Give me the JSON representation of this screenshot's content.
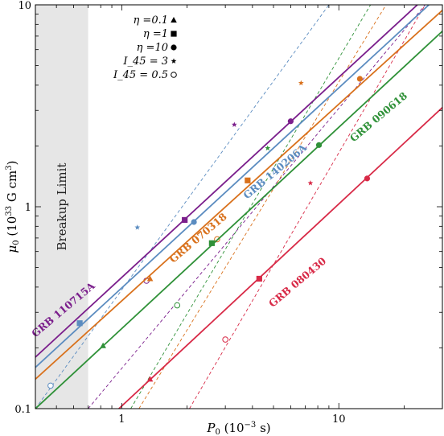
{
  "chart_data": {
    "type": "line",
    "title": "",
    "xlabel": "P_0 (10^{-3} s)",
    "ylabel": "μ_0 (10^{33} G cm^3)",
    "xscale": "log",
    "yscale": "log",
    "xlim": [
      0.4,
      30
    ],
    "ylim": [
      0.1,
      10
    ],
    "x_major_ticks": [
      1,
      10
    ],
    "x_tick_labels": [
      "1",
      "10"
    ],
    "y_major_ticks": [
      0.1,
      1,
      10
    ],
    "y_tick_labels": [
      "0.1",
      "1",
      "10"
    ],
    "grid": false,
    "breakup_region": {
      "label": "Breakup Limit",
      "x_from": 0.4,
      "x_to": 0.7,
      "color": "#e6e6e6"
    },
    "legend": {
      "placement": "top-left",
      "entries": [
        {
          "label": "η =0.1",
          "marker": "triangle"
        },
        {
          "label": "η =1",
          "marker": "square"
        },
        {
          "label": "η =10",
          "marker": "circle"
        },
        {
          "label": "I_45 = 3",
          "marker": "star"
        },
        {
          "label": "I_45 = 0.5",
          "marker": "open-circle"
        }
      ]
    },
    "series": [
      {
        "name": "GRB 110715A",
        "color": "#7b1f8c",
        "line": [
          [
            0.4,
            0.18
          ],
          [
            23,
            10
          ]
        ],
        "markers": [
          {
            "type": "square",
            "x": 1.95,
            "y": 0.86
          },
          {
            "type": "circle",
            "x": 6.0,
            "y": 2.65
          }
        ],
        "dashed": [
          [
            0.7,
            0.1
          ],
          [
            25,
            10
          ]
        ],
        "dashed_markers": [
          {
            "type": "star",
            "x": 3.3,
            "y": 2.55
          },
          {
            "type": "open-circle",
            "x": 1.3,
            "y": 0.43
          }
        ]
      },
      {
        "name": "GRB 070318",
        "color": "#d9711c",
        "line": [
          [
            0.4,
            0.14
          ],
          [
            30,
            9.4
          ]
        ],
        "markers": [
          {
            "type": "triangle",
            "x": 1.35,
            "y": 0.44
          },
          {
            "type": "square",
            "x": 3.8,
            "y": 1.35
          },
          {
            "type": "circle",
            "x": 12.5,
            "y": 4.3
          }
        ],
        "dashed": [
          [
            1.2,
            0.1
          ],
          [
            16.5,
            10
          ]
        ],
        "dashed_markers": [
          {
            "type": "star",
            "x": 6.7,
            "y": 4.1
          },
          {
            "type": "open-circle",
            "x": 2.75,
            "y": 0.69
          }
        ]
      },
      {
        "name": "GRB 140206A",
        "color": "#5b8cc0",
        "line": [
          [
            0.4,
            0.16
          ],
          [
            26,
            10
          ]
        ],
        "markers": [
          {
            "type": "square",
            "x": 0.64,
            "y": 0.265
          },
          {
            "type": "circle",
            "x": 2.15,
            "y": 0.84
          }
        ],
        "dashed": [
          [
            0.4,
            0.1
          ],
          [
            9,
            10
          ]
        ],
        "dashed_markers": [
          {
            "type": "star",
            "x": 1.18,
            "y": 0.79
          },
          {
            "type": "open-circle",
            "x": 0.47,
            "y": 0.13
          }
        ]
      },
      {
        "name": "GRB 090618",
        "color": "#2f9138",
        "line": [
          [
            0.4,
            0.1
          ],
          [
            30,
            7.4
          ]
        ],
        "markers": [
          {
            "type": "triangle",
            "x": 0.82,
            "y": 0.205
          },
          {
            "type": "square",
            "x": 2.6,
            "y": 0.66
          },
          {
            "type": "circle",
            "x": 8.1,
            "y": 2.02
          }
        ],
        "dashed": [
          [
            1.1,
            0.1
          ],
          [
            14,
            10
          ]
        ],
        "dashed_markers": [
          {
            "type": "star",
            "x": 4.7,
            "y": 1.95
          },
          {
            "type": "open-circle",
            "x": 1.8,
            "y": 0.325
          }
        ]
      },
      {
        "name": "GRB 080430",
        "color": "#d82a47",
        "line": [
          [
            0.97,
            0.1
          ],
          [
            30,
            3.1
          ]
        ],
        "markers": [
          {
            "type": "triangle",
            "x": 1.35,
            "y": 0.14
          },
          {
            "type": "square",
            "x": 4.3,
            "y": 0.44
          },
          {
            "type": "circle",
            "x": 13.5,
            "y": 1.38
          }
        ],
        "dashed": [
          [
            2.05,
            0.1
          ],
          [
            25,
            10
          ]
        ],
        "dashed_markers": [
          {
            "type": "star",
            "x": 7.4,
            "y": 1.31
          },
          {
            "type": "open-circle",
            "x": 3.0,
            "y": 0.22
          }
        ]
      }
    ],
    "series_labels": [
      {
        "text": "GRB 110715A",
        "x": 0.55,
        "y": 0.3,
        "rotate": -40
      },
      {
        "text": "GRB 070318",
        "x": 2.3,
        "y": 0.68,
        "rotate": -40
      },
      {
        "text": "GRB 140206A",
        "x": 5.2,
        "y": 1.45,
        "rotate": -40
      },
      {
        "text": "GRB 090618",
        "x": 15.6,
        "y": 2.7,
        "rotate": -40
      },
      {
        "text": "GRB 080430",
        "x": 6.6,
        "y": 0.41,
        "rotate": -40
      }
    ]
  }
}
